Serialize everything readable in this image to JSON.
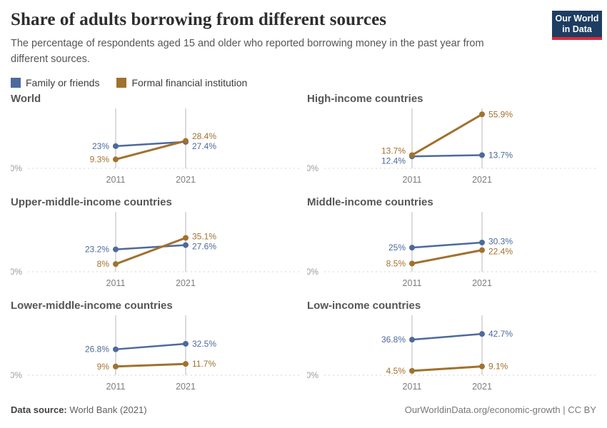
{
  "header": {
    "title": "Share of adults borrowing from different sources",
    "subtitle": "The percentage of respondents aged 15 and older who reported borrowing money in the past year from different sources.",
    "logo": {
      "line1": "Our World",
      "line2": "in Data"
    }
  },
  "legend": [
    {
      "label": "Family or friends",
      "color": "#4C6A9C"
    },
    {
      "label": "Formal financial institution",
      "color": "#A1712E"
    }
  ],
  "colors": {
    "family_or_friends": "#4C6A9C",
    "formal_financial_institution": "#A1712E",
    "guide_line": "#cfcfcf",
    "zero_line": "#dcdcdc",
    "logo_bg": "#1d3d63",
    "logo_underline": "#e0283b"
  },
  "chart_data": {
    "type": "line",
    "x": [
      2011,
      2021
    ],
    "x_tick_labels": [
      "2011",
      "2021"
    ],
    "zero_axis_label": "0%",
    "ylim": [
      0,
      62
    ],
    "grid": "vertical guide line at each year, dotted zero baseline",
    "legend_position": "top-left",
    "series_names": [
      "Family or friends",
      "Formal financial institution"
    ],
    "panels": [
      {
        "title": "World",
        "series": [
          {
            "name": "Family or friends",
            "values": [
              23,
              27.4
            ],
            "labels": [
              "23%",
              "27.4%"
            ]
          },
          {
            "name": "Formal financial institution",
            "values": [
              9.3,
              28.4
            ],
            "labels": [
              "9.3%",
              "28.4%"
            ]
          }
        ]
      },
      {
        "title": "High-income countries",
        "series": [
          {
            "name": "Family or friends",
            "values": [
              12.4,
              13.7
            ],
            "labels": [
              "12.4%",
              "13.7%"
            ]
          },
          {
            "name": "Formal financial institution",
            "values": [
              13.7,
              55.9
            ],
            "labels": [
              "13.7%",
              "55.9%"
            ]
          }
        ]
      },
      {
        "title": "Upper-middle-income countries",
        "series": [
          {
            "name": "Family or friends",
            "values": [
              23.2,
              27.6
            ],
            "labels": [
              "23.2%",
              "27.6%"
            ]
          },
          {
            "name": "Formal financial institution",
            "values": [
              8,
              35.1
            ],
            "labels": [
              "8%",
              "35.1%"
            ]
          }
        ]
      },
      {
        "title": "Middle-income countries",
        "series": [
          {
            "name": "Family or friends",
            "values": [
              25,
              30.3
            ],
            "labels": [
              "25%",
              "30.3%"
            ]
          },
          {
            "name": "Formal financial institution",
            "values": [
              8.5,
              22.4
            ],
            "labels": [
              "8.5%",
              "22.4%"
            ]
          }
        ]
      },
      {
        "title": "Lower-middle-income countries",
        "series": [
          {
            "name": "Family or friends",
            "values": [
              26.8,
              32.5
            ],
            "labels": [
              "26.8%",
              "32.5%"
            ]
          },
          {
            "name": "Formal financial institution",
            "values": [
              9,
              11.7
            ],
            "labels": [
              "9%",
              "11.7%"
            ]
          }
        ]
      },
      {
        "title": "Low-income countries",
        "series": [
          {
            "name": "Family or friends",
            "values": [
              36.8,
              42.7
            ],
            "labels": [
              "36.8%",
              "42.7%"
            ]
          },
          {
            "name": "Formal financial institution",
            "values": [
              4.5,
              9.1
            ],
            "labels": [
              "4.5%",
              "9.1%"
            ]
          }
        ]
      }
    ]
  },
  "footer": {
    "source_label": "Data source:",
    "source_value": "World Bank (2021)",
    "attribution": "OurWorldinData.org/economic-growth | CC BY"
  }
}
